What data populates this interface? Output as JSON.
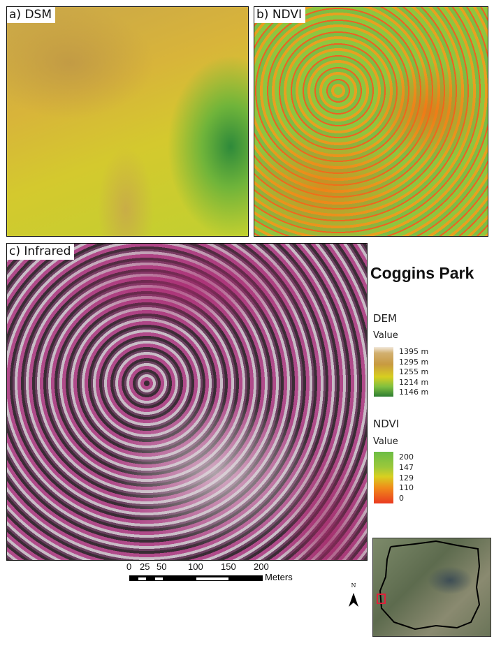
{
  "panels": {
    "a": "a) DSM",
    "b": "b) NDVI",
    "c": "c) Infrared"
  },
  "title": "Coggins Park",
  "legend": {
    "dem": {
      "heading": "DEM",
      "sub": "Value",
      "ticks": [
        "1395 m",
        "1295 m",
        "1255 m",
        "1214 m",
        "1146 m"
      ]
    },
    "ndvi": {
      "heading": "NDVI",
      "sub": "Value",
      "ticks": [
        "200",
        "147",
        "129",
        "110",
        "0"
      ]
    }
  },
  "scale": {
    "labels": [
      "0",
      "25",
      "50",
      "100",
      "150",
      "200"
    ],
    "unit": "Meters"
  },
  "north": "N",
  "colors": {
    "dem_high": "#f2e8dc",
    "dem_low": "#2e7d32",
    "ndvi_high": "#6cbd45",
    "ndvi_low": "#ea3a20",
    "study_area_marker": "#e0203a"
  }
}
